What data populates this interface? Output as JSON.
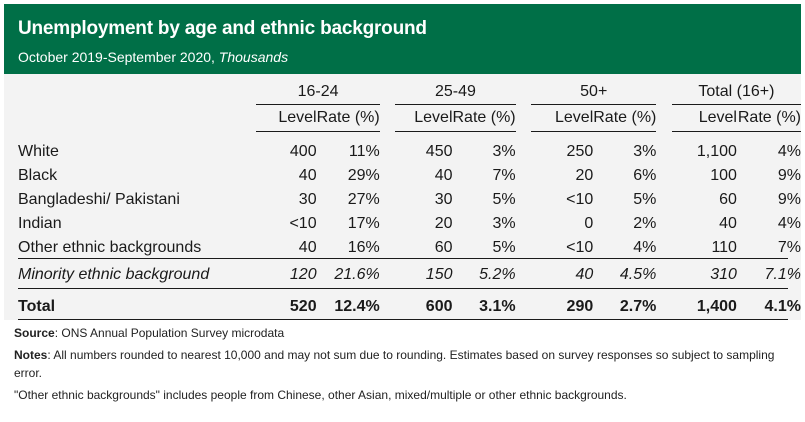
{
  "title": "Unemployment by age and ethnic background",
  "subtitle_main": "October 2019-September 2020,",
  "subtitle_unit": "Thousands",
  "groups": [
    "16-24",
    "25-49",
    "50+",
    "Total (16+)"
  ],
  "subheaders": {
    "level": "Level",
    "rate": "Rate (%)"
  },
  "rows": [
    {
      "label": "White",
      "values": [
        "400",
        "11%",
        "450",
        "3%",
        "250",
        "3%",
        "1,100",
        "4%"
      ]
    },
    {
      "label": "Black",
      "values": [
        "40",
        "29%",
        "40",
        "7%",
        "20",
        "6%",
        "100",
        "9%"
      ]
    },
    {
      "label": "Bangladeshi/ Pakistani",
      "values": [
        "30",
        "27%",
        "30",
        "5%",
        "<10",
        "5%",
        "60",
        "9%"
      ]
    },
    {
      "label": "Indian",
      "values": [
        "<10",
        "17%",
        "20",
        "3%",
        "0",
        "2%",
        "40",
        "4%"
      ]
    },
    {
      "label": "Other ethnic backgrounds",
      "values": [
        "40",
        "16%",
        "60",
        "5%",
        "<10",
        "4%",
        "110",
        "7%"
      ]
    }
  ],
  "minority": {
    "label": "Minority ethnic background",
    "values": [
      "120",
      "21.6%",
      "150",
      "5.2%",
      "40",
      "4.5%",
      "310",
      "7.1%"
    ]
  },
  "total": {
    "label": "Total",
    "values": [
      "520",
      "12.4%",
      "600",
      "3.1%",
      "290",
      "2.7%",
      "1,400",
      "4.1%"
    ]
  },
  "source": {
    "label": "Source",
    "text": ": ONS Annual Population Survey microdata"
  },
  "notes": {
    "label": "Notes",
    "text": ": All numbers rounded to nearest 10,000 and may not sum due to rounding. Estimates based on survey responses so subject to sampling error."
  },
  "footnote": "\"Other ethnic backgrounds\" includes people from Chinese, other Asian, mixed/multiple or other ethnic backgrounds."
}
